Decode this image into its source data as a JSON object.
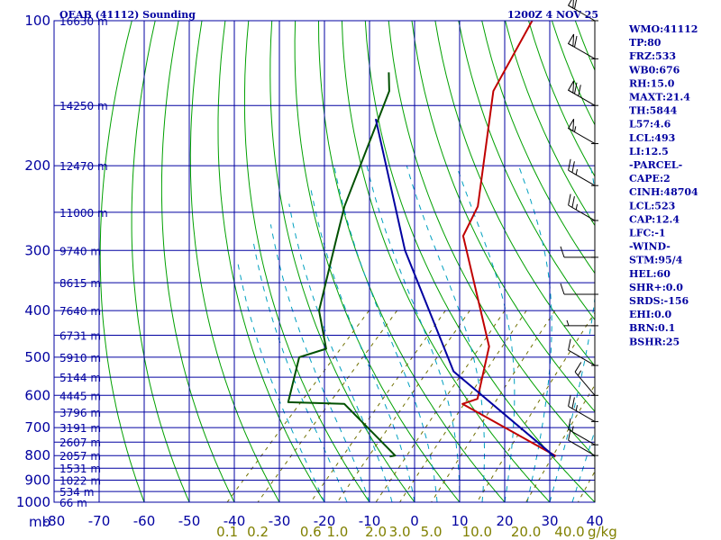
{
  "header": {
    "station_title": "OEAB (41112) Sounding",
    "valid_time": "1200Z  4 NOV 25"
  },
  "colors": {
    "frame": "#0000a0",
    "temperature": "#c00000",
    "dewpoint": "#005000",
    "parcel": "#0000a0",
    "dry_adiabat": "#00a000",
    "moist_adiabat": "#00a0c0",
    "mixing_ratio": "#707000"
  },
  "chart_data": {
    "type": "skew-t",
    "title": "OEAB (41112) Sounding",
    "pressure_axis_label": "mb",
    "pressure_levels": [
      100,
      200,
      300,
      400,
      500,
      600,
      700,
      800,
      900,
      1000
    ],
    "temperature_ticks": [
      -80,
      -70,
      -60,
      -50,
      -40,
      -30,
      -20,
      -10,
      0,
      10,
      20,
      30,
      40
    ],
    "temperature_tick_labels": [
      "-80",
      "-70",
      "-60",
      "-50",
      "-40",
      "-30",
      "-20",
      "-10",
      "0",
      "10",
      "20",
      "30",
      "40"
    ],
    "xlim": [
      -80,
      40
    ],
    "ylim": [
      1000,
      100
    ],
    "skew_deg_per_decade": 100,
    "height_labels": [
      {
        "p": 100,
        "text": "16630 m"
      },
      {
        "p": 150,
        "text": "14250 m"
      },
      {
        "p": 200,
        "text": "12470 m"
      },
      {
        "p": 250,
        "text": "11000 m"
      },
      {
        "p": 300,
        "text": "9740 m"
      },
      {
        "p": 350,
        "text": "8615 m"
      },
      {
        "p": 400,
        "text": "7640 m"
      },
      {
        "p": 450,
        "text": "6731 m"
      },
      {
        "p": 500,
        "text": "5910 m"
      },
      {
        "p": 550,
        "text": "5144 m"
      },
      {
        "p": 600,
        "text": "4445 m"
      },
      {
        "p": 650,
        "text": "3796 m"
      },
      {
        "p": 700,
        "text": "3191 m"
      },
      {
        "p": 750,
        "text": "2607 m"
      },
      {
        "p": 800,
        "text": "2057 m"
      },
      {
        "p": 850,
        "text": "1531 m"
      },
      {
        "p": 900,
        "text": "1022 m"
      },
      {
        "p": 950,
        "text": "534 m"
      },
      {
        "p": 1000,
        "text": "66 m"
      }
    ],
    "mixing_ratio_g_kg": [
      0.1,
      0.2,
      0.6,
      1.0,
      2.0,
      3.0,
      5.0,
      10.0,
      20.0,
      40.0
    ],
    "mixing_ratio_labels": [
      "0.1",
      "0.2",
      "0.6",
      "1.0",
      "2.0",
      "3.0",
      "5.0",
      "10.0",
      "20.0",
      "40.0"
    ],
    "mixing_ratio_unit": "g/kg",
    "series": [
      {
        "name": "temperature",
        "points": [
          {
            "p": 100,
            "t": -73.9
          },
          {
            "p": 140,
            "t": -67.9
          },
          {
            "p": 243,
            "t": -47.4
          },
          {
            "p": 280,
            "t": -44.5
          },
          {
            "p": 475,
            "t": -15.8
          },
          {
            "p": 610,
            "t": -7.5
          },
          {
            "p": 625,
            "t": -9.8
          },
          {
            "p": 800,
            "t": 21.5
          },
          {
            "p": 806,
            "t": 21.6
          }
        ]
      },
      {
        "name": "dewpoint",
        "points": [
          {
            "p": 128,
            "t": -95
          },
          {
            "p": 140,
            "t": -91
          },
          {
            "p": 243,
            "t": -77
          },
          {
            "p": 286,
            "t": -71.8
          },
          {
            "p": 400,
            "t": -61
          },
          {
            "p": 480,
            "t": -51.5
          },
          {
            "p": 500,
            "t": -55.7
          },
          {
            "p": 620,
            "t": -48.8
          },
          {
            "p": 625,
            "t": -36
          },
          {
            "p": 800,
            "t": -14
          },
          {
            "p": 804,
            "t": -15
          }
        ]
      },
      {
        "name": "parcel",
        "points": [
          {
            "p": 160,
            "t": -88.2
          },
          {
            "p": 300,
            "t": -54.4
          },
          {
            "p": 535,
            "t": -18.5
          },
          {
            "p": 804,
            "t": 21.6
          }
        ]
      }
    ],
    "wind_barbs": [
      {
        "p": 100,
        "dir": 300,
        "kt": 60
      },
      {
        "p": 120,
        "dir": 300,
        "kt": 60
      },
      {
        "p": 150,
        "dir": 300,
        "kt": 70
      },
      {
        "p": 180,
        "dir": 300,
        "kt": 55
      },
      {
        "p": 220,
        "dir": 300,
        "kt": 25
      },
      {
        "p": 260,
        "dir": 300,
        "kt": 25
      },
      {
        "p": 310,
        "dir": 270,
        "kt": 10
      },
      {
        "p": 370,
        "dir": 270,
        "kt": 10
      },
      {
        "p": 430,
        "dir": 270,
        "kt": 5
      },
      {
        "p": 520,
        "dir": 300,
        "kt": 10
      },
      {
        "p": 600,
        "dir": 320,
        "kt": 15
      },
      {
        "p": 680,
        "dir": 300,
        "kt": 25
      },
      {
        "p": 760,
        "dir": 300,
        "kt": 15
      },
      {
        "p": 800,
        "dir": 300,
        "kt": 10
      }
    ]
  },
  "indices": [
    "WMO:41112",
    "TP:80",
    "FRZ:533",
    "WB0:676",
    "RH:15.0",
    "MAXT:21.4",
    "TH:5844",
    "L57:4.6",
    "LCL:493",
    "LI:12.5",
    "-PARCEL-",
    "CAPE:2",
    "CINH:48704",
    "LCL:523",
    "CAP:12.4",
    "LFC:-1",
    "-WIND-",
    "STM:95/4",
    "HEL:60",
    "SHR+:0.0",
    "SRDS:-156",
    "EHI:0.0",
    "BRN:0.1",
    "BSHR:25"
  ]
}
